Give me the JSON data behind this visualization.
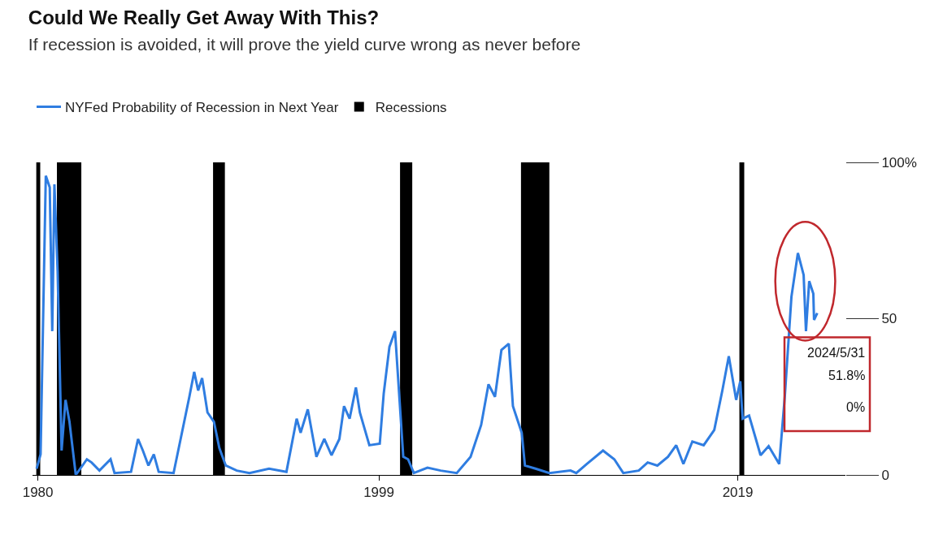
{
  "chart_data": {
    "type": "line",
    "title": "Could We Really Get Away With This?",
    "subtitle": "If recession is avoided, it will prove the yield curve wrong as never before",
    "series": [
      {
        "name": "NYFed Probability of Recession in Next Year",
        "color": "#2f7de1",
        "x": [
          1979.93,
          1980.15,
          1980.44,
          1980.66,
          1980.8,
          1980.92,
          1981.1,
          1981.32,
          1981.54,
          1981.76,
          1982.11,
          1982.73,
          1982.99,
          1983.43,
          1984.05,
          1984.27,
          1985.19,
          1985.58,
          1985.85,
          1986.16,
          1986.46,
          1986.73,
          1987.56,
          1988.44,
          1988.71,
          1988.93,
          1989.15,
          1989.45,
          1989.81,
          1990.11,
          1990.47,
          1991.08,
          1991.79,
          1992.88,
          1993.85,
          1994.42,
          1994.64,
          1995.04,
          1995.52,
          1995.96,
          1996.36,
          1996.8,
          1997.06,
          1997.37,
          1997.72,
          1997.94,
          1998.47,
          1999.05,
          1999.27,
          1999.59,
          1999.9,
          2000.36,
          2000.63,
          2000.95,
          2001.71,
          2002.44,
          2003.34,
          2004.11,
          2004.7,
          2005.11,
          2005.47,
          2005.83,
          2006.24,
          2006.47,
          2006.96,
          2007.14,
          2007.73,
          2008.5,
          2009.68,
          2010.0,
          2010.58,
          2011.49,
          2012.12,
          2012.62,
          2013.48,
          2013.98,
          2014.52,
          2015.11,
          2015.57,
          2015.97,
          2016.47,
          2017.1,
          2017.69,
          2018.14,
          2018.5,
          2018.91,
          2019.14,
          2019.27,
          2019.63,
          2020.27,
          2020.72,
          2021.31,
          2021.62,
          2021.99,
          2022.35,
          2022.67,
          2022.8,
          2022.98,
          2023.21,
          2023.25,
          2023.43
        ],
        "values": [
          2,
          6.6,
          95.7,
          92,
          46,
          93,
          65,
          7.8,
          24,
          17,
          0,
          5,
          4,
          1.4,
          5,
          0.6,
          1,
          11.5,
          7.8,
          3,
          6.6,
          1,
          0.6,
          25,
          33,
          27,
          31,
          20,
          17,
          8.6,
          3,
          1.4,
          0.6,
          2,
          1,
          18,
          13.5,
          21,
          5.8,
          11.5,
          6.3,
          11.5,
          22,
          18,
          28,
          20,
          9.5,
          10,
          26,
          41,
          46,
          5.8,
          5,
          0.6,
          2.3,
          1.4,
          0.6,
          5.8,
          16,
          29,
          25,
          40,
          42,
          22,
          13.5,
          3,
          2,
          0.6,
          1.4,
          0.6,
          3.5,
          7.8,
          5,
          0.6,
          1.4,
          4,
          3,
          5.8,
          9.5,
          3.5,
          10.7,
          9.5,
          14.4,
          27,
          38,
          24,
          30,
          18,
          19,
          6.3,
          9.2,
          3.5,
          25,
          57,
          71,
          64,
          46,
          62,
          58,
          49.6,
          51.8
        ]
      }
    ],
    "bands": [
      {
        "axis": "x",
        "from": 1979.91,
        "to": 1980.13,
        "label": "Recessions",
        "color": "#000000"
      },
      {
        "axis": "x",
        "from": 1981.06,
        "to": 1982.42,
        "color": "#000000"
      },
      {
        "axis": "x",
        "from": 1989.76,
        "to": 1990.42,
        "color": "#000000"
      },
      {
        "axis": "x",
        "from": 2000.18,
        "to": 2000.86,
        "color": "#000000"
      },
      {
        "axis": "x",
        "from": 2006.92,
        "to": 2008.5,
        "color": "#000000"
      },
      {
        "axis": "x",
        "from": 2019.09,
        "to": 2019.36,
        "color": "#000000"
      }
    ],
    "annotations": [
      "2024/5/31",
      "51.8%",
      "0%"
    ],
    "xlim": [
      1979.7,
      2025
    ],
    "xticks": [
      1980,
      1999,
      2019
    ],
    "ylim": [
      0,
      100
    ],
    "yticks": [
      {
        "value": 0,
        "label": "0"
      },
      {
        "value": 50,
        "label": "50"
      },
      {
        "value": 100,
        "label": "100%"
      }
    ],
    "grid": false,
    "legend": "top left",
    "marker": "none",
    "line_style": "solid"
  }
}
